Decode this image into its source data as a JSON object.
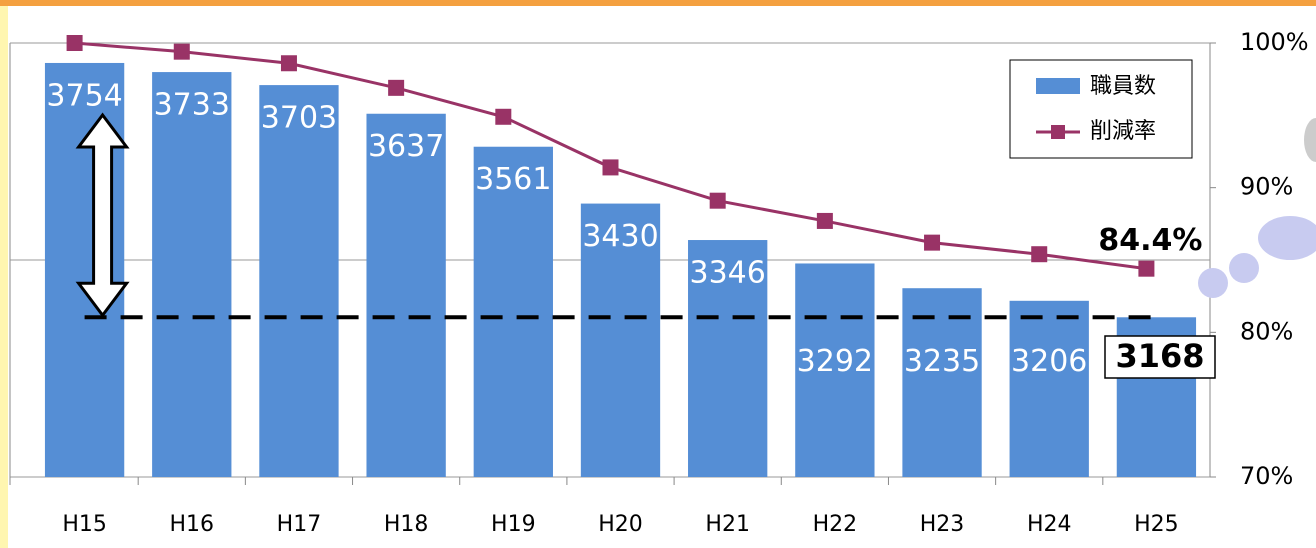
{
  "chart_data": {
    "type": "bar_line",
    "categories": [
      "H15",
      "H16",
      "H17",
      "H18",
      "H19",
      "H20",
      "H21",
      "H22",
      "H23",
      "H24",
      "H25"
    ],
    "series": [
      {
        "name": "職員数",
        "type": "bar",
        "color": "#558ed5",
        "values": [
          3754,
          3733,
          3703,
          3637,
          3561,
          3430,
          3346,
          3292,
          3235,
          3206,
          3168
        ]
      },
      {
        "name": "削減率",
        "type": "line",
        "axis": "y2",
        "color": "#993366",
        "values": [
          100,
          99.4,
          98.6,
          96.9,
          94.9,
          91.4,
          89.1,
          87.7,
          86.2,
          85.4,
          84.4
        ],
        "value_labels": [
          null,
          null,
          null,
          null,
          null,
          null,
          null,
          null,
          null,
          null,
          "84.4%"
        ]
      }
    ],
    "ylim": [
      2800,
      3800
    ],
    "yticks": [
      2800,
      3300,
      3800
    ],
    "y2lim": [
      70,
      100
    ],
    "y2ticks": [
      {
        "value": 70,
        "label": "70%"
      },
      {
        "value": 80,
        "label": "80%"
      },
      {
        "value": 90,
        "label": "90%"
      },
      {
        "value": 100,
        "label": "100%"
      }
    ],
    "grid": true,
    "legend": "top-right"
  }
}
